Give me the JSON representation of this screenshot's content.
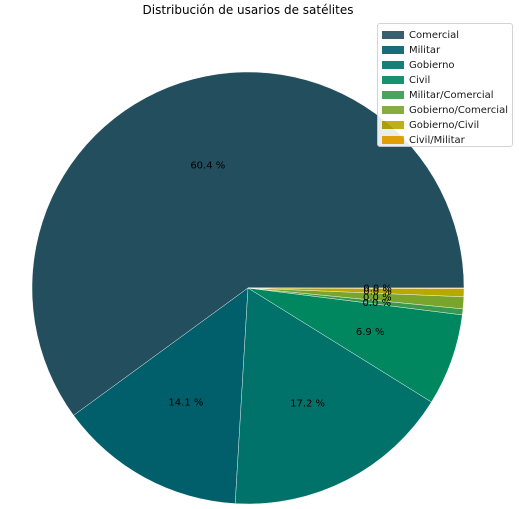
{
  "chart_data": {
    "type": "pie",
    "title": "Distribución de usarios de satélites",
    "categories": [
      "Comercial",
      "Militar",
      "Gobierno",
      "Civil",
      "Militar/Comercial",
      "Gobierno/Comercial",
      "Gobierno/Civil",
      "Civil/Militar"
    ],
    "values": [
      60.4,
      14.1,
      17.2,
      6.9,
      0.0,
      0.0,
      0.0,
      0.0
    ],
    "pct_labels": [
      "60.4 %",
      "14.1 %",
      "17.2 %",
      "6.9 %",
      "0.0 %",
      "0.0 %",
      "0.0 %",
      "0.0 %"
    ],
    "colors": [
      "#234e5e",
      "#005f6a",
      "#00726a",
      "#00875f",
      "#3a9a4c",
      "#7aa52d",
      "#b8a900",
      "#f5a700"
    ],
    "legend_position": "top-right"
  }
}
